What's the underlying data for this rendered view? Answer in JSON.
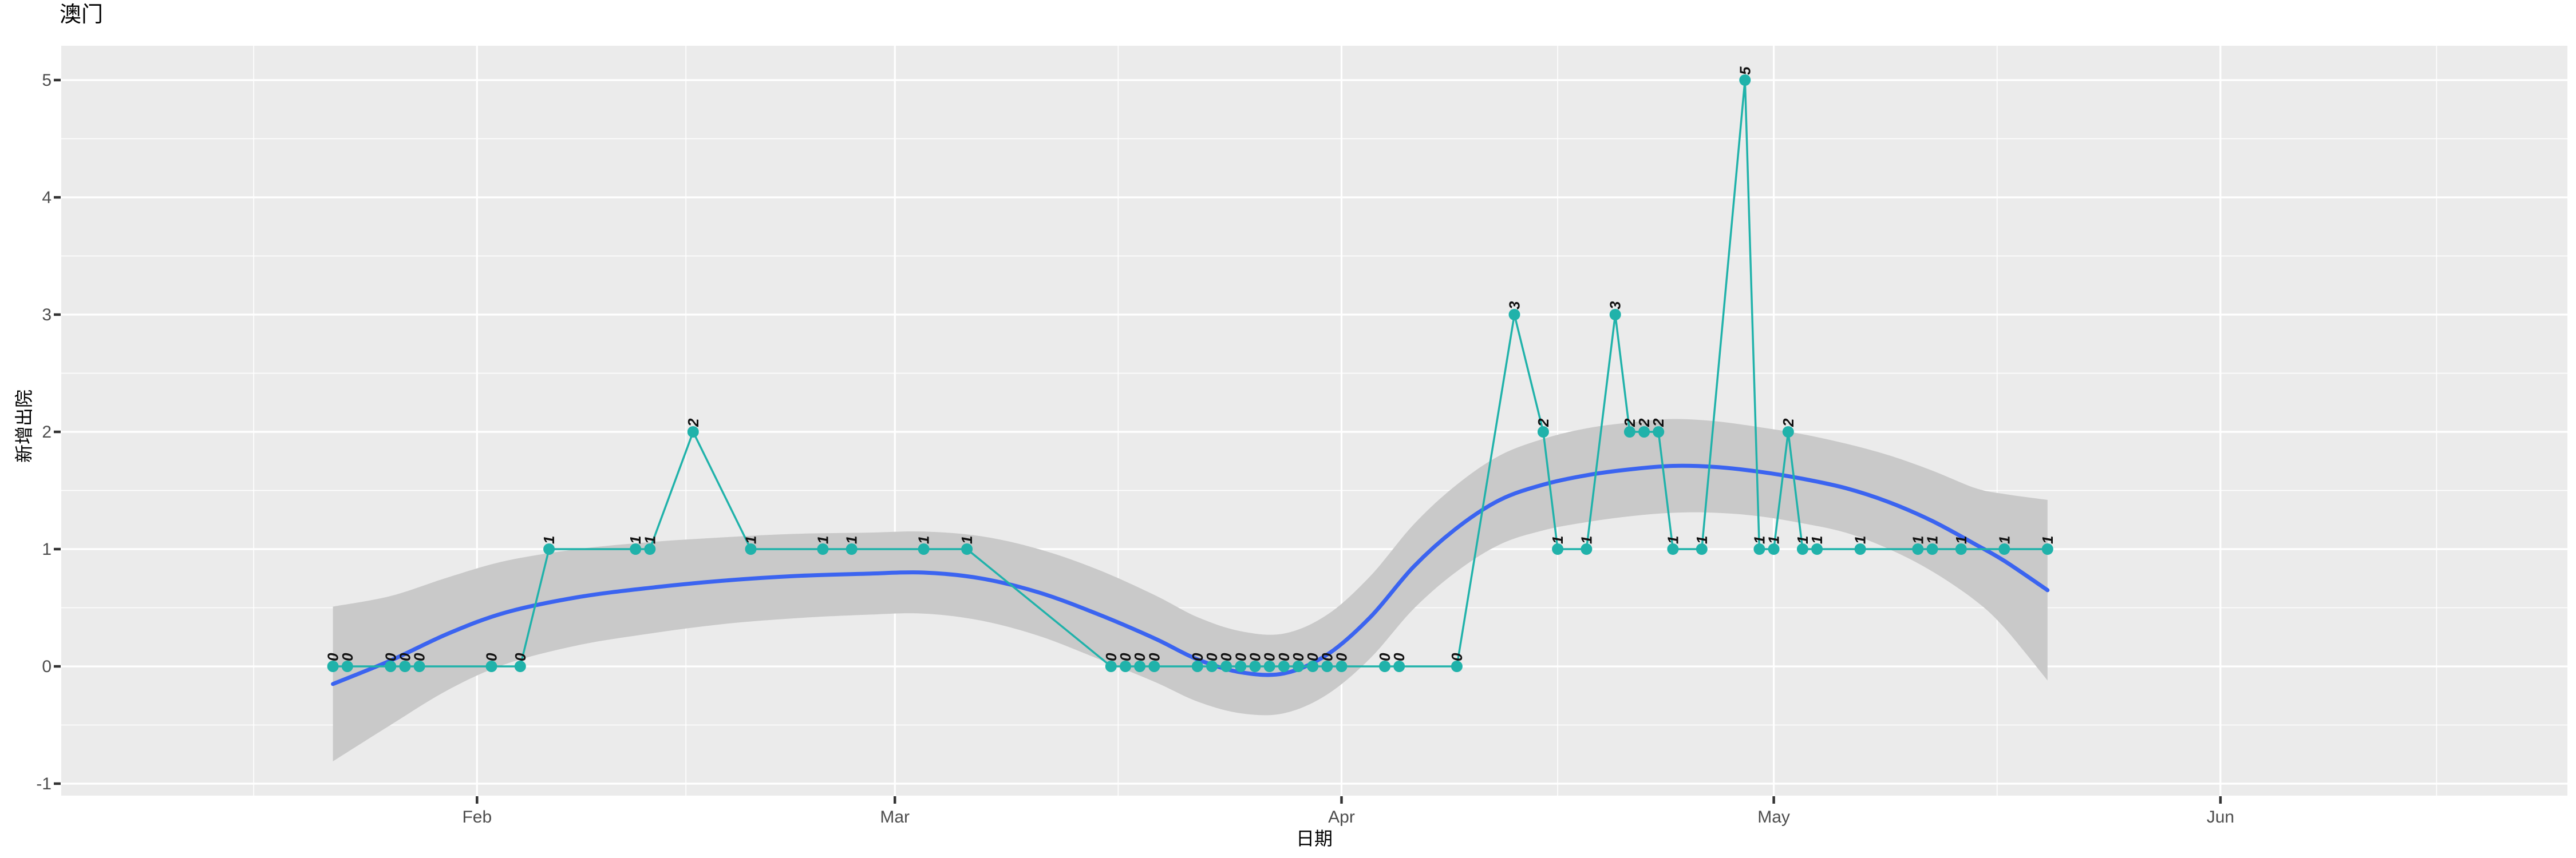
{
  "title": "澳门",
  "axes": {
    "x": {
      "label": "日期",
      "ticks": [
        "Feb",
        "Mar",
        "Apr",
        "May",
        "Jun"
      ]
    },
    "y": {
      "label": "新增出院",
      "ticks": [
        "-1",
        "0",
        "1",
        "2",
        "3",
        "4",
        "5"
      ],
      "tick_values": [
        -1,
        0,
        1,
        2,
        3,
        4,
        5
      ]
    }
  },
  "colors": {
    "panel": "#EBEBEB",
    "grid": "#FFFFFF",
    "ribbon": "#C9C9C9",
    "smooth_line": "#3B64F0",
    "series": "#20B2AA",
    "tick_text": "#4D4D4D",
    "tick_mark": "#333333",
    "label_text": "#111111"
  },
  "chart_data": {
    "type": "line",
    "title": "澳门",
    "xlabel": "日期",
    "ylabel": "新增出院",
    "x_tick_labels": [
      "Feb",
      "Mar",
      "Apr",
      "May",
      "Jun"
    ],
    "ylim": [
      -1.1,
      5.3
    ],
    "grid": true,
    "legend": false,
    "point_labels_show_values": true,
    "point_label_style": "italic bold rotated 90deg ccw",
    "series_points_month_day_value": [
      [
        1,
        22,
        0
      ],
      [
        1,
        23,
        0
      ],
      [
        1,
        26,
        0
      ],
      [
        1,
        27,
        0
      ],
      [
        1,
        28,
        0
      ],
      [
        2,
        2,
        0
      ],
      [
        2,
        4,
        0
      ],
      [
        2,
        6,
        1
      ],
      [
        2,
        12,
        1
      ],
      [
        2,
        13,
        1
      ],
      [
        2,
        16,
        2
      ],
      [
        2,
        20,
        1
      ],
      [
        2,
        25,
        1
      ],
      [
        2,
        27,
        1
      ],
      [
        3,
        3,
        1
      ],
      [
        3,
        6,
        1
      ],
      [
        3,
        16,
        0
      ],
      [
        3,
        17,
        0
      ],
      [
        3,
        18,
        0
      ],
      [
        3,
        19,
        0
      ],
      [
        3,
        22,
        0
      ],
      [
        3,
        23,
        0
      ],
      [
        3,
        24,
        0
      ],
      [
        3,
        25,
        0
      ],
      [
        3,
        26,
        0
      ],
      [
        3,
        27,
        0
      ],
      [
        3,
        28,
        0
      ],
      [
        3,
        29,
        0
      ],
      [
        3,
        30,
        0
      ],
      [
        3,
        31,
        0
      ],
      [
        4,
        1,
        0
      ],
      [
        4,
        4,
        0
      ],
      [
        4,
        5,
        0
      ],
      [
        4,
        9,
        0
      ],
      [
        4,
        13,
        3
      ],
      [
        4,
        15,
        2
      ],
      [
        4,
        16,
        1
      ],
      [
        4,
        18,
        1
      ],
      [
        4,
        20,
        3
      ],
      [
        4,
        21,
        2
      ],
      [
        4,
        22,
        2
      ],
      [
        4,
        23,
        2
      ],
      [
        4,
        24,
        1
      ],
      [
        4,
        26,
        1
      ],
      [
        4,
        29,
        5
      ],
      [
        4,
        30,
        1
      ],
      [
        5,
        1,
        1
      ],
      [
        5,
        2,
        2
      ],
      [
        5,
        3,
        1
      ],
      [
        5,
        4,
        1
      ],
      [
        5,
        7,
        1
      ],
      [
        5,
        11,
        1
      ],
      [
        5,
        12,
        1
      ],
      [
        5,
        14,
        1
      ],
      [
        5,
        17,
        1
      ],
      [
        5,
        20,
        1
      ]
    ],
    "smooth_loess_month_day_mean_halfwidth": [
      [
        1,
        22,
        -0.15,
        0.66
      ],
      [
        1,
        26,
        0.05,
        0.55
      ],
      [
        1,
        30,
        0.28,
        0.48
      ],
      [
        2,
        3,
        0.46,
        0.44
      ],
      [
        2,
        8,
        0.59,
        0.41
      ],
      [
        2,
        13,
        0.67,
        0.39
      ],
      [
        2,
        18,
        0.73,
        0.37
      ],
      [
        2,
        23,
        0.77,
        0.36
      ],
      [
        2,
        28,
        0.79,
        0.35
      ],
      [
        3,
        3,
        0.8,
        0.35
      ],
      [
        3,
        7,
        0.75,
        0.36
      ],
      [
        3,
        11,
        0.63,
        0.37
      ],
      [
        3,
        15,
        0.45,
        0.38
      ],
      [
        3,
        19,
        0.24,
        0.37
      ],
      [
        3,
        22,
        0.06,
        0.36
      ],
      [
        3,
        25,
        -0.05,
        0.35
      ],
      [
        3,
        28,
        -0.06,
        0.34
      ],
      [
        3,
        31,
        0.1,
        0.34
      ],
      [
        4,
        3,
        0.42,
        0.35
      ],
      [
        4,
        6,
        0.85,
        0.36
      ],
      [
        4,
        9,
        1.18,
        0.37
      ],
      [
        4,
        12,
        1.42,
        0.38
      ],
      [
        4,
        15,
        1.55,
        0.39
      ],
      [
        4,
        18,
        1.63,
        0.4
      ],
      [
        4,
        21,
        1.68,
        0.4
      ],
      [
        4,
        24,
        1.71,
        0.4
      ],
      [
        4,
        27,
        1.7,
        0.39
      ],
      [
        4,
        30,
        1.66,
        0.38
      ],
      [
        5,
        3,
        1.6,
        0.38
      ],
      [
        5,
        6,
        1.52,
        0.38
      ],
      [
        5,
        9,
        1.4,
        0.4
      ],
      [
        5,
        12,
        1.24,
        0.43
      ],
      [
        5,
        15,
        1.04,
        0.48
      ],
      [
        5,
        17,
        0.9,
        0.57
      ],
      [
        5,
        20,
        0.65,
        0.77
      ]
    ]
  }
}
